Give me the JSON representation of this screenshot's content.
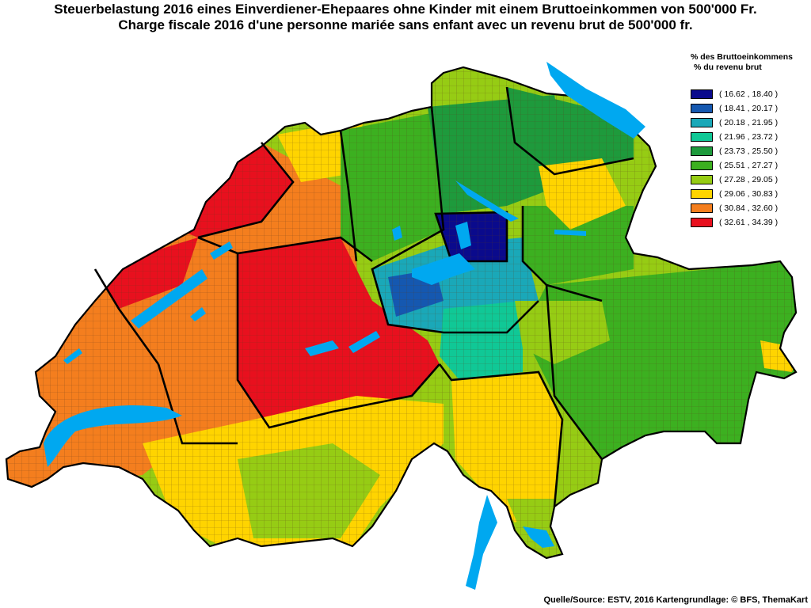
{
  "title_de": "Steuerbelastung 2016 eines Einverdiener-Ehepaares ohne Kinder mit einem Bruttoeinkommen von 500'000 Fr.",
  "title_fr": "Charge fiscale 2016 d'une personne mariée sans enfant avec un revenu brut de 500'000 fr.",
  "legend": {
    "heading_de": "% des Bruttoeinkommens",
    "heading_fr": "% du revenu brut",
    "classes": [
      {
        "label": "( 16.62 , 18.40 )",
        "color": "#0a0a8c"
      },
      {
        "label": "( 18.41 , 20.17 )",
        "color": "#1558b0"
      },
      {
        "label": "( 20.18 , 21.95 )",
        "color": "#1aa8b8"
      },
      {
        "label": "( 21.96 , 23.72 )",
        "color": "#10c896"
      },
      {
        "label": "( 23.73 , 25.50 )",
        "color": "#1e9a3c"
      },
      {
        "label": "( 25.51 , 27.27 )",
        "color": "#3cb020"
      },
      {
        "label": "( 27.28 , 29.05 )",
        "color": "#96cc14"
      },
      {
        "label": "( 29.06 , 30.83 )",
        "color": "#ffd400"
      },
      {
        "label": "( 30.84 , 32.60 )",
        "color": "#f47e1e"
      },
      {
        "label": "( 32.61 , 34.39 )",
        "color": "#e8101e"
      }
    ]
  },
  "colors": {
    "lake": "#00a8f0",
    "canton_border": "#000000",
    "municipality_border": "#5a3a1a"
  },
  "source": "Quelle/Source: ESTV, 2016 Kartengrundlage: © BFS, ThemaKart"
}
